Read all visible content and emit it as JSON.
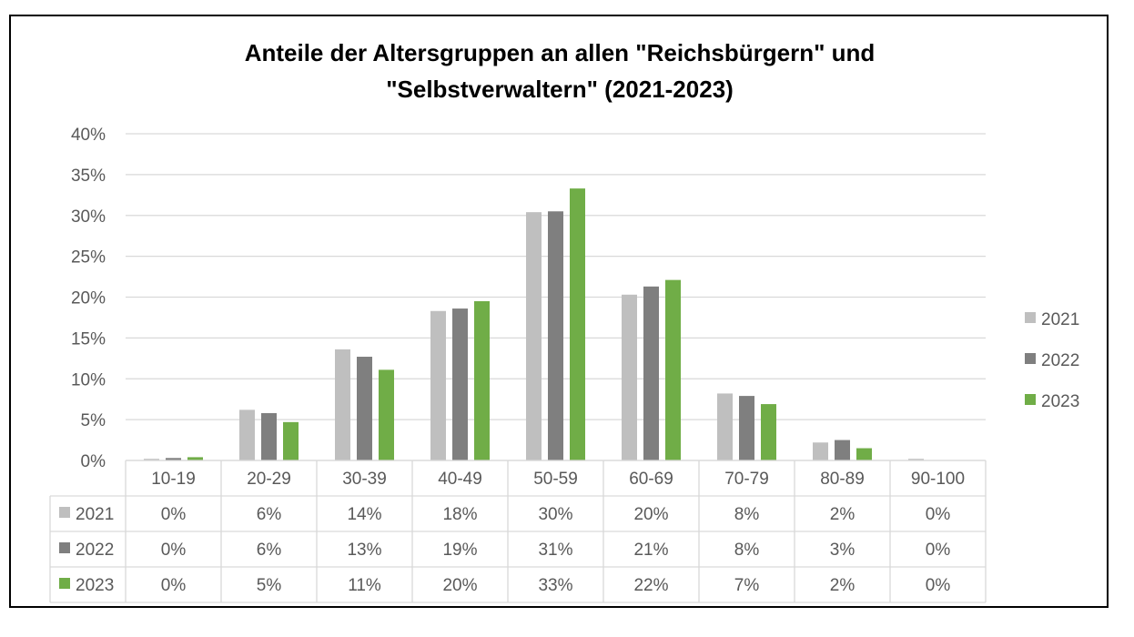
{
  "chart_data": {
    "type": "bar",
    "title_line1": "Anteile der Altersgruppen an allen \"Reichsbürgern\" und",
    "title_line2": "\"Selbstverwaltern\" (2021-2023)",
    "categories": [
      "10-19",
      "20-29",
      "30-39",
      "40-49",
      "50-59",
      "60-69",
      "70-79",
      "80-89",
      "90-100"
    ],
    "y_ticks": [
      "0%",
      "5%",
      "10%",
      "15%",
      "20%",
      "25%",
      "30%",
      "35%",
      "40%"
    ],
    "ylim": [
      0,
      40
    ],
    "grid": true,
    "legend_position": "right",
    "series": [
      {
        "name": "2021",
        "color": "#bfbfbf",
        "values": [
          0.2,
          6.2,
          13.6,
          18.3,
          30.4,
          20.3,
          8.2,
          2.2,
          0.2
        ],
        "labels": [
          "0%",
          "6%",
          "14%",
          "18%",
          "30%",
          "20%",
          "8%",
          "2%",
          "0%"
        ]
      },
      {
        "name": "2022",
        "color": "#7f7f7f",
        "values": [
          0.3,
          5.8,
          12.7,
          18.6,
          30.5,
          21.3,
          7.9,
          2.5,
          0.0
        ],
        "labels": [
          "0%",
          "6%",
          "13%",
          "19%",
          "31%",
          "21%",
          "8%",
          "3%",
          "0%"
        ]
      },
      {
        "name": "2023",
        "color": "#70ad47",
        "values": [
          0.4,
          4.7,
          11.1,
          19.5,
          33.3,
          22.1,
          6.9,
          1.5,
          0.0
        ],
        "labels": [
          "0%",
          "5%",
          "11%",
          "20%",
          "33%",
          "22%",
          "7%",
          "2%",
          "0%"
        ]
      }
    ]
  }
}
